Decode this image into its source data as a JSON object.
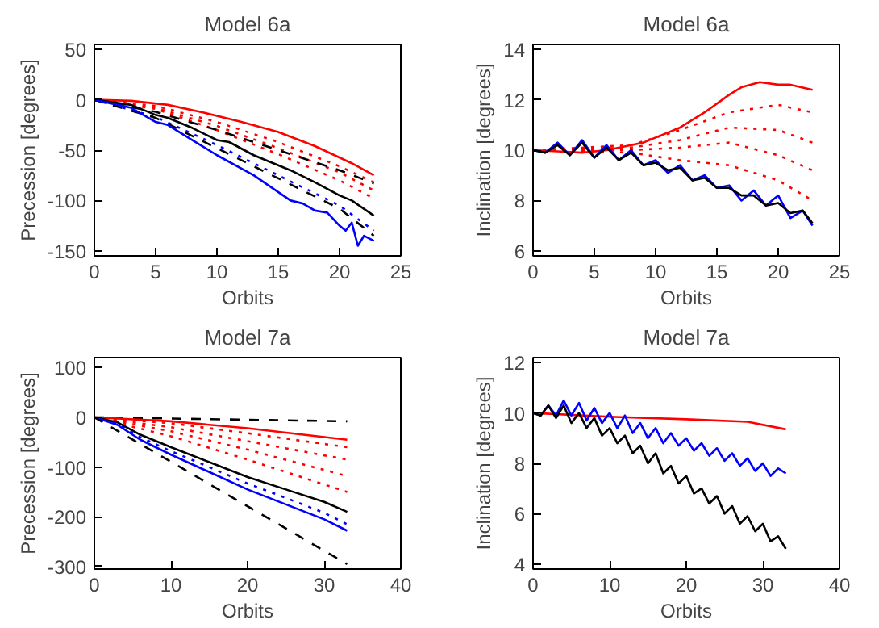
{
  "chart_data": [
    {
      "type": "line",
      "title": "Model 6a",
      "xlabel": "Orbits",
      "ylabel": "Precession [degrees]",
      "xlim": [
        0,
        25
      ],
      "ylim": [
        -155,
        55
      ],
      "xticks": [
        0,
        5,
        10,
        15,
        20,
        25
      ],
      "yticks": [
        -150,
        -100,
        -50,
        0,
        50
      ],
      "series": [
        {
          "color": "#ff0000",
          "line_style": "dotted",
          "x": [
            0,
            5,
            10,
            15,
            20,
            22.8
          ],
          "values": [
            0,
            -6,
            -22,
            -42,
            -66,
            -82
          ]
        },
        {
          "color": "#ff0000",
          "line_style": "dotted",
          "x": [
            0,
            5,
            10,
            15,
            20,
            22.8
          ],
          "values": [
            0,
            -8,
            -26,
            -48,
            -72,
            -90
          ]
        },
        {
          "color": "#ff0000",
          "line_style": "dotted",
          "x": [
            0,
            5,
            10,
            15,
            20,
            22.8
          ],
          "values": [
            0,
            -9,
            -30,
            -54,
            -80,
            -98
          ]
        },
        {
          "color": "#ff0000",
          "line_style": "solid",
          "x": [
            0,
            3,
            6,
            9,
            12,
            15,
            18,
            21,
            22.8
          ],
          "values": [
            0,
            -1,
            -5,
            -13,
            -22,
            -32,
            -46,
            -63,
            -75
          ]
        },
        {
          "color": "#000000",
          "line_style": "dashed",
          "x": [
            0,
            5,
            10,
            15,
            20,
            22.8
          ],
          "values": [
            0,
            -12,
            -30,
            -50,
            -70,
            -83
          ]
        },
        {
          "color": "#000000",
          "line_style": "solid",
          "x": [
            0,
            3,
            5,
            6,
            8,
            10,
            11,
            13,
            15,
            16,
            18,
            20,
            21,
            22.8
          ],
          "values": [
            0,
            -5,
            -15,
            -18,
            -28,
            -40,
            -42,
            -55,
            -65,
            -70,
            -82,
            -95,
            -100,
            -115
          ]
        },
        {
          "color": "#0000ff",
          "line_style": "dotted",
          "x": [
            0,
            5,
            10,
            15,
            20,
            22.8
          ],
          "values": [
            0,
            -17,
            -45,
            -75,
            -105,
            -130
          ]
        },
        {
          "color": "#000000",
          "line_style": "dashed",
          "x": [
            0,
            5,
            10,
            15,
            20,
            22.8
          ],
          "values": [
            0,
            -18,
            -48,
            -78,
            -108,
            -135
          ]
        },
        {
          "color": "#0000ff",
          "line_style": "solid",
          "x": [
            0,
            3,
            5,
            6,
            8,
            10,
            13,
            16,
            17,
            18,
            19,
            20,
            20.5,
            21,
            21.5,
            22,
            22.8
          ],
          "values": [
            0,
            -8,
            -22,
            -25,
            -40,
            -55,
            -75,
            -100,
            -103,
            -110,
            -112,
            -125,
            -130,
            -122,
            -145,
            -135,
            -140
          ]
        }
      ]
    },
    {
      "type": "line",
      "title": "Model 6a",
      "xlabel": "Orbits",
      "ylabel": "Inclination [degrees]",
      "xlim": [
        0,
        25
      ],
      "ylim": [
        5.8,
        14.2
      ],
      "xticks": [
        0,
        5,
        10,
        15,
        20,
        25
      ],
      "yticks": [
        6,
        8,
        10,
        12,
        14
      ],
      "series": [
        {
          "color": "#ff0000",
          "line_style": "dotted",
          "x": [
            0,
            8,
            12,
            16,
            20,
            22.8
          ],
          "values": [
            10,
            10.2,
            10.8,
            11.5,
            11.8,
            11.5
          ]
        },
        {
          "color": "#ff0000",
          "line_style": "dotted",
          "x": [
            0,
            8,
            12,
            16,
            20,
            22.8
          ],
          "values": [
            10,
            10.1,
            10.4,
            10.9,
            10.8,
            10.3
          ]
        },
        {
          "color": "#ff0000",
          "line_style": "dotted",
          "x": [
            0,
            8,
            12,
            16,
            20,
            22.8
          ],
          "values": [
            10,
            10,
            10.1,
            10.3,
            9.8,
            9.2
          ]
        },
        {
          "color": "#ff0000",
          "line_style": "dotted",
          "x": [
            0,
            8,
            12,
            16,
            20,
            22.8
          ],
          "values": [
            10,
            9.9,
            9.6,
            9.4,
            8.8,
            8.0
          ]
        },
        {
          "color": "#ff0000",
          "line_style": "solid",
          "x": [
            0,
            2,
            4,
            6,
            8,
            9,
            10,
            12,
            14,
            16,
            17,
            18.5,
            20,
            21,
            22.8
          ],
          "values": [
            10,
            9.95,
            9.9,
            10,
            10.2,
            10.3,
            10.5,
            10.9,
            11.5,
            12.2,
            12.5,
            12.7,
            12.6,
            12.6,
            12.4
          ]
        },
        {
          "color": "#0000ff",
          "line_style": "solid",
          "x": [
            0,
            1,
            2,
            3,
            4,
            5,
            6,
            7,
            8,
            9,
            10,
            11,
            12,
            13,
            14,
            15,
            16,
            17,
            18,
            19,
            20,
            21,
            22,
            22.8
          ],
          "values": [
            10,
            9.9,
            10.3,
            9.8,
            10.4,
            9.7,
            10.2,
            9.6,
            10,
            9.4,
            9.6,
            9.1,
            9.4,
            8.8,
            9.0,
            8.5,
            8.6,
            8.0,
            8.4,
            7.8,
            8.2,
            7.3,
            7.6,
            7.0
          ]
        },
        {
          "color": "#000000",
          "line_style": "solid",
          "x": [
            0,
            1,
            2,
            3,
            4,
            5,
            6,
            7,
            8,
            9,
            10,
            11,
            12,
            13,
            14,
            15,
            16,
            17,
            18,
            19,
            20,
            21,
            22,
            22.8
          ],
          "values": [
            10,
            9.9,
            10.2,
            9.8,
            10.3,
            9.7,
            10.1,
            9.6,
            9.9,
            9.4,
            9.5,
            9.2,
            9.3,
            8.8,
            8.9,
            8.5,
            8.5,
            8.2,
            8.2,
            7.8,
            7.9,
            7.5,
            7.6,
            7.1
          ]
        }
      ]
    },
    {
      "type": "line",
      "title": "Model 7a",
      "xlabel": "Orbits",
      "ylabel": "Precession [degrees]",
      "xlim": [
        0,
        40
      ],
      "ylim": [
        -305,
        120
      ],
      "xticks": [
        0,
        10,
        20,
        30,
        40
      ],
      "yticks": [
        -300,
        -200,
        -100,
        0,
        100
      ],
      "series": [
        {
          "color": "#000000",
          "line_style": "dashed",
          "x": [
            0,
            33
          ],
          "values": [
            0,
            -8
          ]
        },
        {
          "color": "#ff0000",
          "line_style": "solid",
          "x": [
            0,
            10,
            20,
            33
          ],
          "values": [
            0,
            -8,
            -22,
            -45
          ]
        },
        {
          "color": "#ff0000",
          "line_style": "dotted",
          "x": [
            0,
            10,
            20,
            33
          ],
          "values": [
            0,
            -12,
            -32,
            -60
          ]
        },
        {
          "color": "#ff0000",
          "line_style": "dotted",
          "x": [
            0,
            10,
            20,
            33
          ],
          "values": [
            0,
            -20,
            -48,
            -85
          ]
        },
        {
          "color": "#ff0000",
          "line_style": "dotted",
          "x": [
            0,
            10,
            20,
            33
          ],
          "values": [
            0,
            -28,
            -65,
            -118
          ]
        },
        {
          "color": "#ff0000",
          "line_style": "dotted",
          "x": [
            0,
            10,
            20,
            33
          ],
          "values": [
            0,
            -38,
            -85,
            -150
          ]
        },
        {
          "color": "#000000",
          "line_style": "solid",
          "x": [
            0,
            3,
            6,
            10,
            15,
            20,
            25,
            30,
            33
          ],
          "values": [
            0,
            -10,
            -35,
            -60,
            -90,
            -120,
            -145,
            -170,
            -190
          ]
        },
        {
          "color": "#0000ff",
          "line_style": "dotted",
          "x": [
            0,
            3,
            6,
            10,
            15,
            20,
            25,
            30,
            33
          ],
          "values": [
            0,
            -13,
            -40,
            -68,
            -100,
            -133,
            -162,
            -192,
            -215
          ]
        },
        {
          "color": "#0000ff",
          "line_style": "solid",
          "x": [
            0,
            3,
            6,
            10,
            15,
            20,
            25,
            30,
            33
          ],
          "values": [
            0,
            -15,
            -45,
            -75,
            -110,
            -145,
            -175,
            -205,
            -228
          ]
        },
        {
          "color": "#000000",
          "line_style": "dashed",
          "x": [
            0,
            33
          ],
          "values": [
            0,
            -295
          ]
        }
      ]
    },
    {
      "type": "line",
      "title": "Model 7a",
      "xlabel": "Orbits",
      "ylabel": "Inclination [degrees]",
      "xlim": [
        0,
        40
      ],
      "ylim": [
        3.8,
        12.2
      ],
      "xticks": [
        0,
        10,
        20,
        30,
        40
      ],
      "yticks": [
        4,
        6,
        8,
        10,
        12
      ],
      "series": [
        {
          "color": "#ff0000",
          "line_style": "solid",
          "x": [
            0,
            10,
            20,
            28,
            33
          ],
          "values": [
            10,
            9.85,
            9.75,
            9.65,
            9.35
          ]
        },
        {
          "color": "#0000ff",
          "line_style": "solid",
          "x": [
            0,
            1,
            2,
            3,
            4,
            5,
            6,
            7,
            8,
            9,
            10,
            11,
            12,
            13,
            14,
            15,
            16,
            17,
            18,
            19,
            20,
            21,
            22,
            23,
            24,
            25,
            26,
            27,
            28,
            29,
            30,
            31,
            32,
            33
          ],
          "values": [
            10.0,
            9.9,
            10.3,
            9.9,
            10.5,
            9.9,
            10.4,
            9.7,
            10.2,
            9.6,
            10.0,
            9.4,
            9.9,
            9.2,
            9.6,
            9.0,
            9.4,
            8.8,
            9.2,
            8.7,
            9.0,
            8.5,
            8.8,
            8.3,
            8.6,
            8.1,
            8.4,
            7.9,
            8.2,
            7.7,
            8.0,
            7.5,
            7.8,
            7.6
          ]
        },
        {
          "color": "#000000",
          "line_style": "solid",
          "x": [
            0,
            1,
            2,
            3,
            4,
            5,
            6,
            7,
            8,
            9,
            10,
            11,
            12,
            13,
            14,
            15,
            16,
            17,
            18,
            19,
            20,
            21,
            22,
            23,
            24,
            25,
            26,
            27,
            28,
            29,
            30,
            31,
            32,
            33
          ],
          "values": [
            10.0,
            9.9,
            10.3,
            9.8,
            10.3,
            9.6,
            10.0,
            9.4,
            9.8,
            9.1,
            9.4,
            8.8,
            9.1,
            8.4,
            8.7,
            8.0,
            8.4,
            7.6,
            7.9,
            7.2,
            7.5,
            6.8,
            7.0,
            6.4,
            6.7,
            6.0,
            6.3,
            5.6,
            5.9,
            5.3,
            5.6,
            4.9,
            5.1,
            4.6
          ]
        }
      ]
    }
  ]
}
